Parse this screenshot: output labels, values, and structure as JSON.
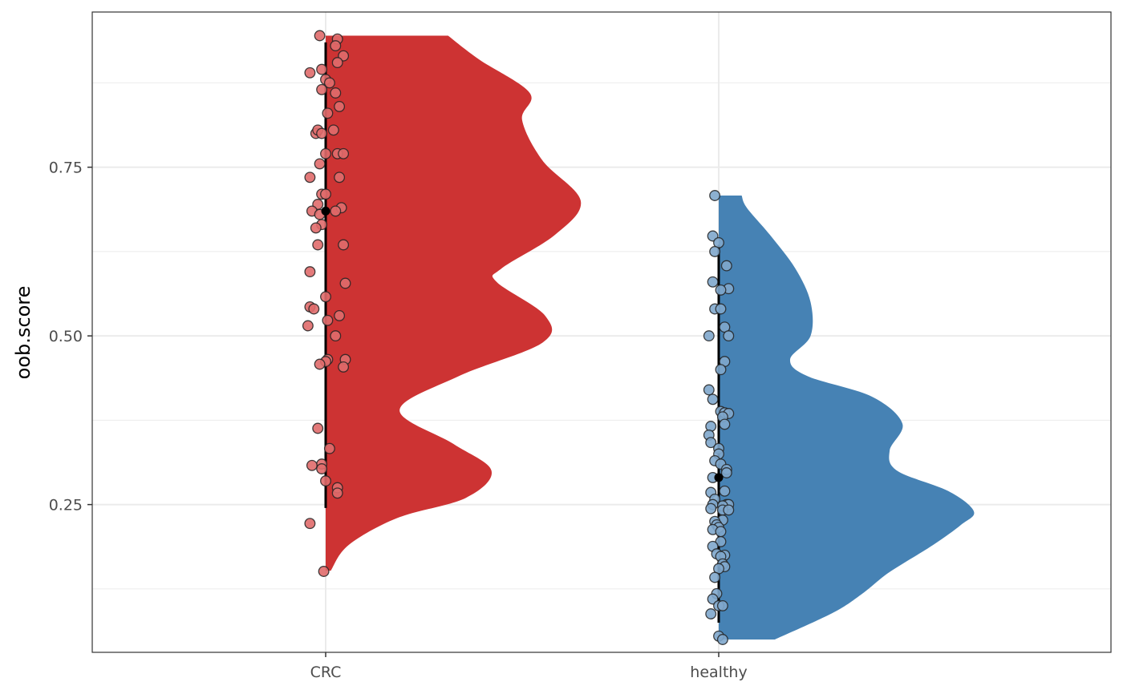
{
  "chart_data": {
    "type": "half-violin with jittered points",
    "xlabel": "",
    "ylabel": "oob.score",
    "ylim": [
      0.031,
      0.98
    ],
    "y_ticks": [
      "0.25",
      "0.50",
      "0.75"
    ],
    "y_tick_values": [
      0.25,
      0.5,
      0.75
    ],
    "y_minor_grid": [
      0.125,
      0.375,
      0.625,
      0.875
    ],
    "grid": true,
    "legend": "none",
    "categories": [
      "CRC",
      "healthy"
    ],
    "groups": [
      {
        "name": "CRC",
        "fill": "#CD3333",
        "point_fill": "#E06B6B",
        "summary": {
          "mean": 0.685,
          "ymin": 0.245,
          "ymax": 0.935
        },
        "density_range": [
          0.152,
          0.945
        ],
        "density": [
          [
            0.152,
            0.02
          ],
          [
            0.19,
            0.09
          ],
          [
            0.23,
            0.28
          ],
          [
            0.26,
            0.55
          ],
          [
            0.3,
            0.65
          ],
          [
            0.34,
            0.5
          ],
          [
            0.39,
            0.29
          ],
          [
            0.44,
            0.52
          ],
          [
            0.49,
            0.85
          ],
          [
            0.53,
            0.86
          ],
          [
            0.58,
            0.67
          ],
          [
            0.6,
            0.69
          ],
          [
            0.65,
            0.9
          ],
          [
            0.7,
            1.0
          ],
          [
            0.76,
            0.85
          ],
          [
            0.82,
            0.77
          ],
          [
            0.86,
            0.8
          ],
          [
            0.91,
            0.6
          ],
          [
            0.945,
            0.48
          ]
        ],
        "points": [
          [
            -0.03,
            0.945
          ],
          [
            0.06,
            0.94
          ],
          [
            0.05,
            0.93
          ],
          [
            0.09,
            0.915
          ],
          [
            0.06,
            0.905
          ],
          [
            -0.08,
            0.89
          ],
          [
            -0.02,
            0.895
          ],
          [
            0.0,
            0.88
          ],
          [
            0.02,
            0.875
          ],
          [
            -0.02,
            0.865
          ],
          [
            0.05,
            0.86
          ],
          [
            0.07,
            0.84
          ],
          [
            0.01,
            0.83
          ],
          [
            -0.05,
            0.8
          ],
          [
            -0.04,
            0.805
          ],
          [
            -0.02,
            0.8
          ],
          [
            0.04,
            0.805
          ],
          [
            0.0,
            0.77
          ],
          [
            0.06,
            0.77
          ],
          [
            0.09,
            0.77
          ],
          [
            -0.03,
            0.755
          ],
          [
            -0.08,
            0.735
          ],
          [
            0.07,
            0.735
          ],
          [
            -0.02,
            0.71
          ],
          [
            0.0,
            0.71
          ],
          [
            -0.04,
            0.695
          ],
          [
            0.08,
            0.69
          ],
          [
            -0.07,
            0.685
          ],
          [
            -0.03,
            0.68
          ],
          [
            0.05,
            0.685
          ],
          [
            -0.02,
            0.665
          ],
          [
            -0.05,
            0.66
          ],
          [
            -0.04,
            0.635
          ],
          [
            0.09,
            0.635
          ],
          [
            -0.08,
            0.595
          ],
          [
            0.1,
            0.578
          ],
          [
            0.0,
            0.558
          ],
          [
            -0.08,
            0.543
          ],
          [
            -0.06,
            0.54
          ],
          [
            0.07,
            0.53
          ],
          [
            0.01,
            0.523
          ],
          [
            -0.09,
            0.515
          ],
          [
            0.05,
            0.5
          ],
          [
            0.1,
            0.465
          ],
          [
            0.01,
            0.465
          ],
          [
            0.0,
            0.462
          ],
          [
            -0.03,
            0.458
          ],
          [
            0.09,
            0.454
          ],
          [
            -0.04,
            0.363
          ],
          [
            0.02,
            0.333
          ],
          [
            -0.02,
            0.31
          ],
          [
            -0.07,
            0.308
          ],
          [
            -0.02,
            0.303
          ],
          [
            0.0,
            0.285
          ],
          [
            0.06,
            0.275
          ],
          [
            0.06,
            0.267
          ],
          [
            -0.08,
            0.222
          ],
          [
            -0.01,
            0.151
          ]
        ]
      },
      {
        "name": "healthy",
        "fill": "#4682B4",
        "point_fill": "#7FA7CC",
        "summary": {
          "mean": 0.29,
          "ymin": 0.075,
          "ymax": 0.635
        },
        "density_range": [
          0.05,
          0.708
        ],
        "density": [
          [
            0.05,
            0.22
          ],
          [
            0.09,
            0.45
          ],
          [
            0.12,
            0.57
          ],
          [
            0.15,
            0.67
          ],
          [
            0.19,
            0.84
          ],
          [
            0.22,
            0.95
          ],
          [
            0.24,
            1.0
          ],
          [
            0.27,
            0.9
          ],
          [
            0.3,
            0.7
          ],
          [
            0.33,
            0.67
          ],
          [
            0.37,
            0.72
          ],
          [
            0.41,
            0.6
          ],
          [
            0.44,
            0.35
          ],
          [
            0.465,
            0.28
          ],
          [
            0.5,
            0.36
          ],
          [
            0.55,
            0.36
          ],
          [
            0.6,
            0.3
          ],
          [
            0.65,
            0.2
          ],
          [
            0.69,
            0.11
          ],
          [
            0.708,
            0.09
          ]
        ],
        "points": [
          [
            -0.02,
            0.708
          ],
          [
            -0.03,
            0.648
          ],
          [
            0.0,
            0.638
          ],
          [
            -0.02,
            0.625
          ],
          [
            0.04,
            0.604
          ],
          [
            -0.03,
            0.58
          ],
          [
            0.05,
            0.57
          ],
          [
            0.01,
            0.568
          ],
          [
            -0.02,
            0.54
          ],
          [
            0.01,
            0.54
          ],
          [
            0.03,
            0.513
          ],
          [
            -0.05,
            0.5
          ],
          [
            0.05,
            0.5
          ],
          [
            0.03,
            0.462
          ],
          [
            0.01,
            0.45
          ],
          [
            -0.05,
            0.42
          ],
          [
            -0.03,
            0.406
          ],
          [
            0.01,
            0.388
          ],
          [
            0.03,
            0.386
          ],
          [
            0.05,
            0.385
          ],
          [
            0.02,
            0.38
          ],
          [
            0.03,
            0.369
          ],
          [
            -0.04,
            0.366
          ],
          [
            -0.05,
            0.353
          ],
          [
            -0.04,
            0.342
          ],
          [
            0.0,
            0.333
          ],
          [
            0.0,
            0.325
          ],
          [
            -0.02,
            0.315
          ],
          [
            0.01,
            0.31
          ],
          [
            0.04,
            0.302
          ],
          [
            0.04,
            0.297
          ],
          [
            -0.03,
            0.29
          ],
          [
            0.03,
            0.27
          ],
          [
            -0.04,
            0.268
          ],
          [
            -0.02,
            0.258
          ],
          [
            -0.03,
            0.25
          ],
          [
            0.04,
            0.25
          ],
          [
            0.05,
            0.25
          ],
          [
            0.02,
            0.248
          ],
          [
            -0.04,
            0.244
          ],
          [
            0.02,
            0.242
          ],
          [
            0.05,
            0.242
          ],
          [
            0.02,
            0.227
          ],
          [
            -0.02,
            0.225
          ],
          [
            -0.01,
            0.22
          ],
          [
            0.0,
            0.216
          ],
          [
            -0.03,
            0.213
          ],
          [
            0.01,
            0.21
          ],
          [
            0.01,
            0.195
          ],
          [
            -0.03,
            0.188
          ],
          [
            -0.01,
            0.177
          ],
          [
            0.03,
            0.175
          ],
          [
            0.01,
            0.173
          ],
          [
            0.02,
            0.162
          ],
          [
            0.03,
            0.158
          ],
          [
            0.0,
            0.155
          ],
          [
            -0.02,
            0.142
          ],
          [
            -0.01,
            0.118
          ],
          [
            -0.03,
            0.11
          ],
          [
            0.0,
            0.1
          ],
          [
            0.02,
            0.1
          ],
          [
            -0.04,
            0.088
          ],
          [
            0.0,
            0.055
          ],
          [
            0.02,
            0.05
          ]
        ]
      }
    ]
  }
}
